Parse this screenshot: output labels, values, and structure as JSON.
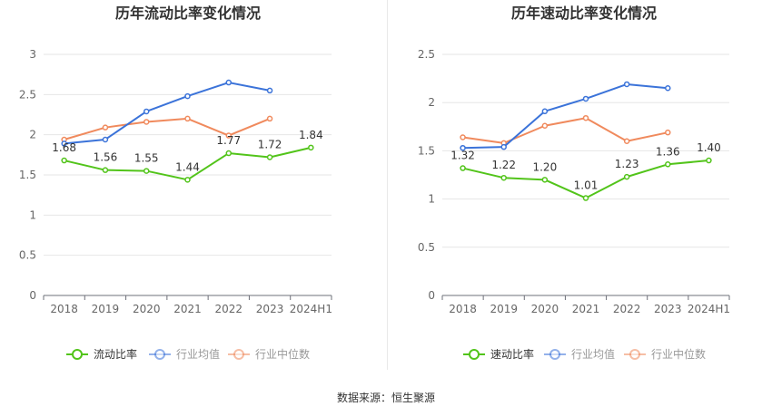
{
  "source_text": "数据来源：恒生聚源",
  "chart_data": [
    {
      "type": "line",
      "title": "历年流动比率变化情况",
      "categories": [
        "2018",
        "2019",
        "2020",
        "2021",
        "2022",
        "2023",
        "2024H1"
      ],
      "ylim": [
        0,
        3
      ],
      "yticks": [
        0,
        0.5,
        1,
        1.5,
        2,
        2.5,
        3
      ],
      "grid": true,
      "legend_position": "bottom",
      "series": [
        {
          "name": "流动比率",
          "color": "#52c41a",
          "values": [
            1.68,
            1.56,
            1.55,
            1.44,
            1.77,
            1.72,
            1.84
          ],
          "labels": [
            "1.68",
            "1.56",
            "1.55",
            "1.44",
            "1.77",
            "1.72",
            "1.84"
          ]
        },
        {
          "name": "行业均值",
          "color": "#3b73d9",
          "values": [
            1.89,
            1.94,
            2.29,
            2.48,
            2.65,
            2.55,
            null
          ]
        },
        {
          "name": "行业中位数",
          "color": "#f08a5d",
          "values": [
            1.94,
            2.09,
            2.16,
            2.2,
            1.99,
            2.2,
            null
          ]
        }
      ]
    },
    {
      "type": "line",
      "title": "历年速动比率变化情况",
      "categories": [
        "2018",
        "2019",
        "2020",
        "2021",
        "2022",
        "2023",
        "2024H1"
      ],
      "ylim": [
        0,
        2.5
      ],
      "yticks": [
        0,
        0.5,
        1,
        1.5,
        2,
        2.5
      ],
      "grid": true,
      "legend_position": "bottom",
      "series": [
        {
          "name": "速动比率",
          "color": "#52c41a",
          "values": [
            1.32,
            1.22,
            1.2,
            1.01,
            1.23,
            1.36,
            1.4
          ],
          "labels": [
            "1.32",
            "1.22",
            "1.20",
            "1.01",
            "1.23",
            "1.36",
            "1.40"
          ]
        },
        {
          "name": "行业均值",
          "color": "#3b73d9",
          "values": [
            1.53,
            1.54,
            1.91,
            2.04,
            2.19,
            2.15,
            null
          ]
        },
        {
          "name": "行业中位数",
          "color": "#f08a5d",
          "values": [
            1.64,
            1.58,
            1.76,
            1.84,
            1.6,
            1.69,
            null
          ]
        }
      ]
    }
  ]
}
